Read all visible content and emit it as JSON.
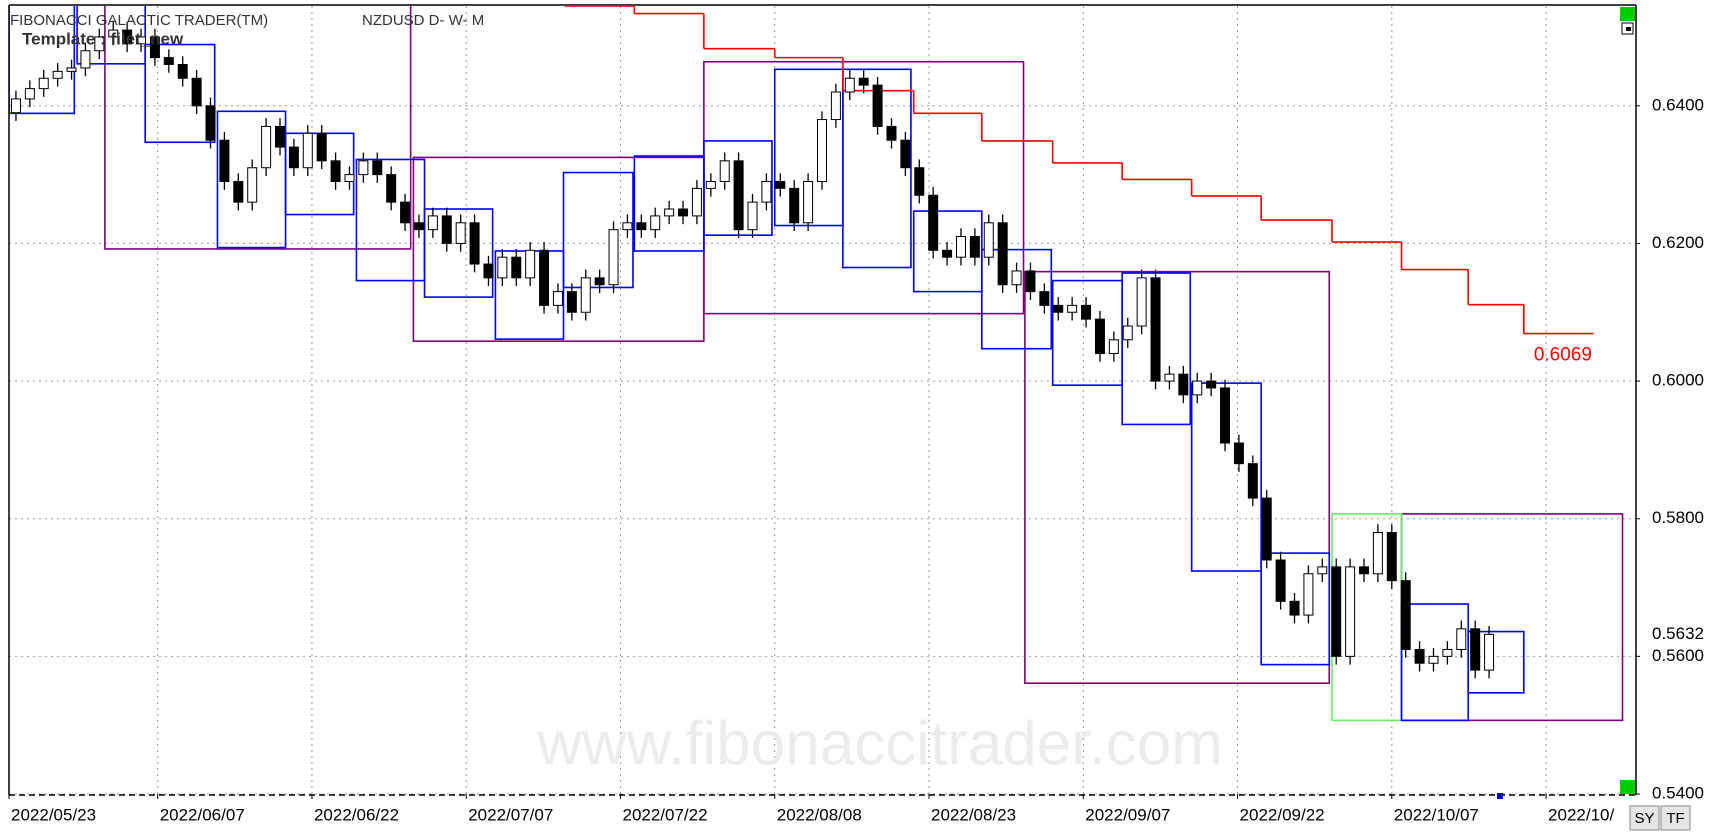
{
  "chart_data": {
    "type": "candlestick",
    "title": "FIBONACCI GALACTIC TRADER(TM)",
    "symbol": "NZDUSD D- W- M",
    "template": "Template : filet_new",
    "watermark": "www.fibonaccitrader.com",
    "up_color": "#ffffff",
    "down_color": "#000000",
    "grid": true,
    "ylim": [
      0.54,
      0.6545
    ],
    "yticks": [
      {
        "value": 0.54,
        "label": "0.5400"
      },
      {
        "value": 0.56,
        "label": "0.5600"
      },
      {
        "value": 0.58,
        "label": "0.5800"
      },
      {
        "value": 0.6,
        "label": "0.6000"
      },
      {
        "value": 0.62,
        "label": "0.6200"
      },
      {
        "value": 0.64,
        "label": "0.6400"
      }
    ],
    "xlim": [
      0,
      117
    ],
    "xticks": [
      {
        "value": 0,
        "label": "2022/05/23"
      },
      {
        "value": 10.7,
        "label": "2022/06/07"
      },
      {
        "value": 21.8,
        "label": "2022/06/22"
      },
      {
        "value": 32.9,
        "label": "2022/07/07"
      },
      {
        "value": 44,
        "label": "2022/07/22"
      },
      {
        "value": 55.1,
        "label": "2022/08/08"
      },
      {
        "value": 66.2,
        "label": "2022/08/23"
      },
      {
        "value": 77.3,
        "label": "2022/09/07"
      },
      {
        "value": 88.4,
        "label": "2022/09/22"
      },
      {
        "value": 99.5,
        "label": "2022/10/07"
      },
      {
        "value": 110.6,
        "label": "2022/10/"
      }
    ],
    "open": [
      0.639,
      0.641,
      0.6425,
      0.644,
      0.645,
      0.6455,
      0.648,
      0.65,
      0.651,
      0.649,
      0.65,
      0.647,
      0.646,
      0.644,
      0.64,
      0.635,
      0.629,
      0.626,
      0.631,
      0.637,
      0.634,
      0.631,
      0.636,
      0.632,
      0.629,
      0.63,
      0.632,
      0.63,
      0.626,
      0.623,
      0.622,
      0.624,
      0.62,
      0.623,
      0.617,
      0.615,
      0.618,
      0.615,
      0.619,
      0.611,
      0.613,
      0.61,
      0.615,
      0.614,
      0.622,
      0.623,
      0.622,
      0.624,
      0.625,
      0.624,
      0.628,
      0.629,
      0.632,
      0.622,
      0.626,
      0.629,
      0.628,
      0.623,
      0.629,
      0.638,
      0.642,
      0.644,
      0.643,
      0.637,
      0.635,
      0.631,
      0.627,
      0.619,
      0.618,
      0.621,
      0.618,
      0.623,
      0.614,
      0.616,
      0.613,
      0.611,
      0.61,
      0.611,
      0.609,
      0.604,
      0.606,
      0.608,
      0.615,
      0.6,
      0.601,
      0.598,
      0.6,
      0.599,
      0.591,
      0.588,
      0.583,
      0.574,
      0.568,
      0.566,
      0.572,
      0.573,
      0.56,
      0.573,
      0.572,
      0.578,
      0.571,
      0.561,
      0.559,
      0.56,
      0.561,
      0.564,
      0.558
    ],
    "high": [
      0.6422,
      0.6437,
      0.6452,
      0.6462,
      0.6467,
      0.6492,
      0.6512,
      0.6522,
      0.6522,
      0.6512,
      0.6512,
      0.6482,
      0.6472,
      0.6452,
      0.6412,
      0.6362,
      0.6302,
      0.6322,
      0.6382,
      0.6382,
      0.6352,
      0.6372,
      0.6372,
      0.6332,
      0.6312,
      0.6332,
      0.6332,
      0.6312,
      0.6272,
      0.6242,
      0.6252,
      0.6252,
      0.6242,
      0.6242,
      0.6182,
      0.6192,
      0.6192,
      0.6202,
      0.6202,
      0.6142,
      0.6142,
      0.6162,
      0.6162,
      0.6232,
      0.6242,
      0.6242,
      0.6252,
      0.6262,
      0.6262,
      0.6292,
      0.6302,
      0.6332,
      0.6332,
      0.6272,
      0.6302,
      0.6302,
      0.6292,
      0.6302,
      0.6392,
      0.6432,
      0.6452,
      0.6452,
      0.6442,
      0.6382,
      0.6362,
      0.6322,
      0.6282,
      0.6202,
      0.6222,
      0.6222,
      0.6242,
      0.6242,
      0.6172,
      0.6172,
      0.6142,
      0.6122,
      0.6122,
      0.6122,
      0.6102,
      0.6072,
      0.6092,
      0.6162,
      0.6162,
      0.6022,
      0.6022,
      0.6012,
      0.6012,
      0.6002,
      0.5922,
      0.5892,
      0.5842,
      0.5752,
      0.5692,
      0.5732,
      0.5742,
      0.5742,
      0.5742,
      0.5742,
      0.5792,
      0.5792,
      0.5722,
      0.5622,
      0.5612,
      0.5622,
      0.5652,
      0.5652,
      0.5644
    ],
    "low": [
      0.6378,
      0.6398,
      0.6413,
      0.6428,
      0.6438,
      0.6443,
      0.6468,
      0.6488,
      0.6478,
      0.6478,
      0.6458,
      0.6448,
      0.6428,
      0.6388,
      0.6338,
      0.6278,
      0.6248,
      0.6248,
      0.6298,
      0.6328,
      0.6298,
      0.6298,
      0.6308,
      0.6278,
      0.6278,
      0.6288,
      0.6288,
      0.6248,
      0.6218,
      0.6208,
      0.6208,
      0.6188,
      0.6188,
      0.6158,
      0.6138,
      0.6138,
      0.6138,
      0.6138,
      0.6098,
      0.6098,
      0.6088,
      0.6088,
      0.6128,
      0.6128,
      0.6208,
      0.6208,
      0.6208,
      0.6228,
      0.6228,
      0.6228,
      0.6268,
      0.6278,
      0.6208,
      0.6208,
      0.6248,
      0.6268,
      0.6218,
      0.6218,
      0.6278,
      0.6368,
      0.6408,
      0.6418,
      0.6358,
      0.6338,
      0.6298,
      0.6258,
      0.6178,
      0.6168,
      0.6168,
      0.6168,
      0.6168,
      0.6128,
      0.6128,
      0.6118,
      0.6098,
      0.6088,
      0.6088,
      0.6078,
      0.6028,
      0.6028,
      0.6048,
      0.6068,
      0.5988,
      0.5988,
      0.5968,
      0.5968,
      0.5978,
      0.5898,
      0.5868,
      0.5818,
      0.5728,
      0.5668,
      0.5648,
      0.5648,
      0.5708,
      0.5588,
      0.5588,
      0.5708,
      0.5708,
      0.5698,
      0.5598,
      0.5578,
      0.5578,
      0.5588,
      0.5598,
      0.5568,
      0.5568
    ],
    "close": [
      0.641,
      0.6425,
      0.644,
      0.645,
      0.6455,
      0.648,
      0.65,
      0.651,
      0.649,
      0.65,
      0.647,
      0.646,
      0.644,
      0.64,
      0.635,
      0.629,
      0.626,
      0.631,
      0.637,
      0.634,
      0.631,
      0.636,
      0.632,
      0.629,
      0.63,
      0.632,
      0.63,
      0.626,
      0.623,
      0.622,
      0.624,
      0.62,
      0.623,
      0.617,
      0.615,
      0.618,
      0.615,
      0.619,
      0.611,
      0.613,
      0.61,
      0.615,
      0.614,
      0.622,
      0.623,
      0.622,
      0.624,
      0.625,
      0.624,
      0.628,
      0.629,
      0.632,
      0.622,
      0.626,
      0.629,
      0.628,
      0.623,
      0.629,
      0.638,
      0.642,
      0.644,
      0.643,
      0.637,
      0.635,
      0.631,
      0.627,
      0.619,
      0.618,
      0.621,
      0.618,
      0.623,
      0.614,
      0.616,
      0.613,
      0.611,
      0.61,
      0.611,
      0.609,
      0.604,
      0.606,
      0.608,
      0.615,
      0.6,
      0.601,
      0.598,
      0.6,
      0.599,
      0.591,
      0.588,
      0.583,
      0.574,
      0.568,
      0.566,
      0.572,
      0.573,
      0.56,
      0.573,
      0.572,
      0.578,
      0.571,
      0.561,
      0.559,
      0.56,
      0.561,
      0.564,
      0.558,
      0.5632
    ],
    "boxes": [
      {
        "color": "#800080",
        "start": 6.9,
        "end": 28.9,
        "high": 0.66,
        "low": 0.6192
      },
      {
        "color": "#800080",
        "start": 29.1,
        "end": 50.0,
        "high": 0.6325,
        "low": 0.6058
      },
      {
        "color": "#800080",
        "start": 50.0,
        "end": 73.0,
        "high": 0.6464,
        "low": 0.6098
      },
      {
        "color": "#800080",
        "start": 73.1,
        "end": 95.0,
        "high": 0.6159,
        "low": 0.5561
      },
      {
        "color": "#800080",
        "start": 100.2,
        "end": 116.1,
        "high": 0.5807,
        "low": 0.5507
      },
      {
        "color": "#0000ff",
        "start": 0,
        "end": 4.7,
        "high": 0.656,
        "low": 0.6389
      },
      {
        "color": "#0000ff",
        "start": 4.9,
        "end": 9.8,
        "high": 0.656,
        "low": 0.6461
      },
      {
        "color": "#0000ff",
        "start": 9.8,
        "end": 14.8,
        "high": 0.6489,
        "low": 0.6347
      },
      {
        "color": "#0000ff",
        "start": 15.0,
        "end": 19.9,
        "high": 0.6392,
        "low": 0.6194
      },
      {
        "color": "#0000ff",
        "start": 19.9,
        "end": 24.8,
        "high": 0.636,
        "low": 0.6242
      },
      {
        "color": "#0000ff",
        "start": 25.0,
        "end": 29.9,
        "high": 0.6322,
        "low": 0.6146
      },
      {
        "color": "#0000ff",
        "start": 29.9,
        "end": 34.8,
        "high": 0.625,
        "low": 0.6122
      },
      {
        "color": "#0000ff",
        "start": 35.0,
        "end": 39.9,
        "high": 0.6189,
        "low": 0.6061
      },
      {
        "color": "#0000ff",
        "start": 39.9,
        "end": 44.9,
        "high": 0.6303,
        "low": 0.6136
      },
      {
        "color": "#0000ff",
        "start": 45.0,
        "end": 50.0,
        "high": 0.6327,
        "low": 0.6189
      },
      {
        "color": "#0000ff",
        "start": 50.0,
        "end": 54.9,
        "high": 0.6349,
        "low": 0.6212
      },
      {
        "color": "#0000ff",
        "start": 55.1,
        "end": 60.0,
        "high": 0.6453,
        "low": 0.6226
      },
      {
        "color": "#0000ff",
        "start": 60.0,
        "end": 64.9,
        "high": 0.6453,
        "low": 0.6165
      },
      {
        "color": "#0000ff",
        "start": 65.1,
        "end": 70.0,
        "high": 0.6247,
        "low": 0.613
      },
      {
        "color": "#0000ff",
        "start": 70.0,
        "end": 75.0,
        "high": 0.6191,
        "low": 0.6047
      },
      {
        "color": "#0000ff",
        "start": 75.1,
        "end": 80.1,
        "high": 0.6146,
        "low": 0.5994
      },
      {
        "color": "#0000ff",
        "start": 80.1,
        "end": 85.0,
        "high": 0.6157,
        "low": 0.5937
      },
      {
        "color": "#0000ff",
        "start": 85.1,
        "end": 90.1,
        "high": 0.5997,
        "low": 0.5724
      },
      {
        "color": "#0000ff",
        "start": 90.1,
        "end": 95.0,
        "high": 0.575,
        "low": 0.5588
      },
      {
        "color": "#66ee66",
        "start": 95.2,
        "end": 100.2,
        "high": 0.5807,
        "low": 0.5507
      },
      {
        "color": "#0000ff",
        "start": 100.2,
        "end": 105.0,
        "high": 0.5676,
        "low": 0.5507
      },
      {
        "color": "#0000ff",
        "start": 105.0,
        "end": 109.0,
        "high": 0.5636,
        "low": 0.5547
      }
    ],
    "stop_line": {
      "color": "#ff0000",
      "starts": [
        40,
        45,
        50,
        55.1,
        60,
        65.1,
        70,
        75.1,
        80.1,
        85.1,
        90.1,
        95.2,
        100.2,
        105,
        109,
        114
      ],
      "values": [
        0.6545,
        0.6534,
        0.6483,
        0.647,
        0.6422,
        0.6389,
        0.6349,
        0.6317,
        0.6293,
        0.6269,
        0.6234,
        0.6202,
        0.6162,
        0.6111,
        0.6069
      ]
    }
  },
  "buttons": [
    "SY",
    "TF"
  ]
}
